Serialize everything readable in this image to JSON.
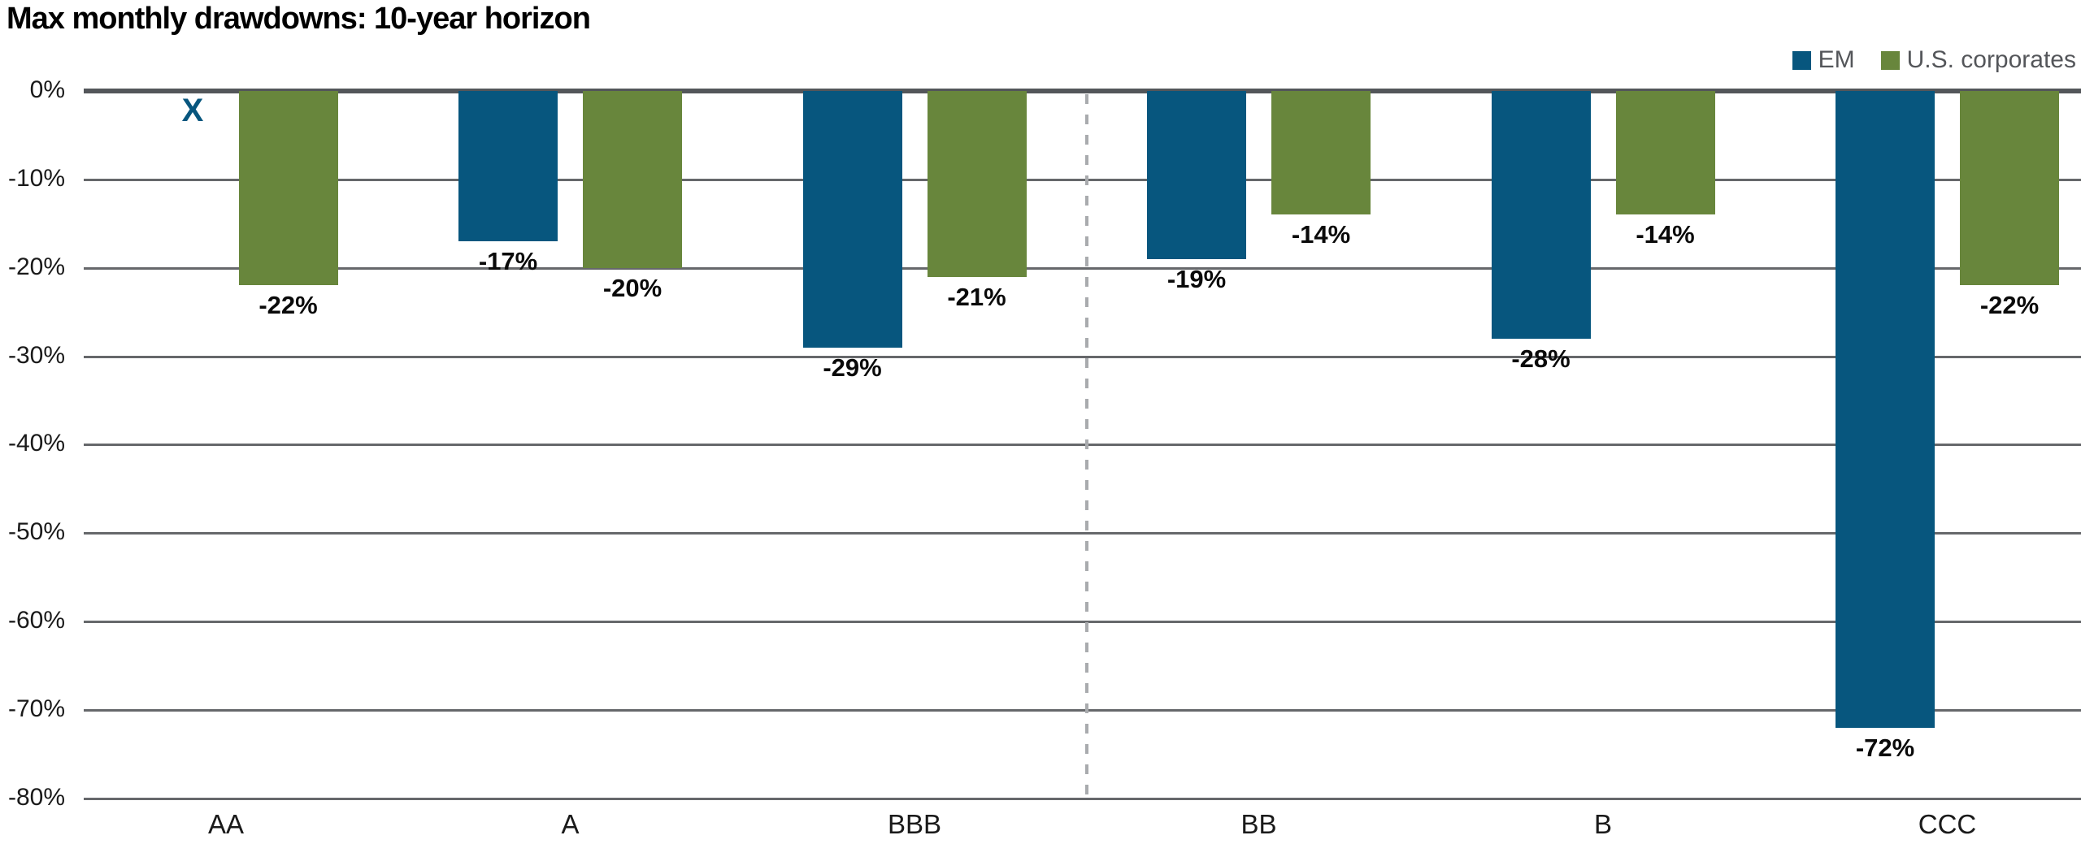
{
  "title": "Max monthly drawdowns: 10-year horizon",
  "legend": {
    "items": [
      {
        "key": "em",
        "label": "EM",
        "color": "#07567E"
      },
      {
        "key": "us-corporates",
        "label": "U.S. corporates",
        "color": "#68863C"
      }
    ]
  },
  "chart_data": {
    "type": "bar",
    "title": "Max monthly drawdowns: 10-year horizon",
    "categories": [
      "AA",
      "A",
      "BBB",
      "BB",
      "B",
      "CCC"
    ],
    "series": [
      {
        "key": "em",
        "name": "EM",
        "color": "#07567E",
        "values": [
          null,
          -17,
          -29,
          -19,
          -28,
          -72
        ]
      },
      {
        "key": "us-corporates",
        "name": "U.S. corporates",
        "color": "#68863C",
        "values": [
          -22,
          -20,
          -21,
          -14,
          -14,
          -22
        ]
      }
    ],
    "data_labels": {
      "em": [
        null,
        "-17%",
        "-29%",
        "-19%",
        "-28%",
        "-72%"
      ],
      "us-corporates": [
        "-22%",
        "-20%",
        "-21%",
        "-14%",
        "-14%",
        "-22%"
      ]
    },
    "missing_marker": {
      "series": "em",
      "category": "AA",
      "symbol": "X"
    },
    "y_ticks": [
      "0%",
      "-10%",
      "-20%",
      "-30%",
      "-40%",
      "-50%",
      "-60%",
      "-70%",
      "-80%"
    ],
    "ylim": [
      -80,
      0
    ],
    "grid": true,
    "legend_position": "top-right",
    "separator_after_category": "BBB"
  },
  "colors": {
    "em_blue": "#07567E",
    "us_green": "#68863C",
    "zero_axis": "#53565A",
    "gridline": "#66686B",
    "separator_dash": "#A9ABAE",
    "legend_text": "#54565A",
    "tick_text": "#1A1A1A",
    "value_text": "#0A0A0A",
    "background": "#FFFFFF"
  }
}
